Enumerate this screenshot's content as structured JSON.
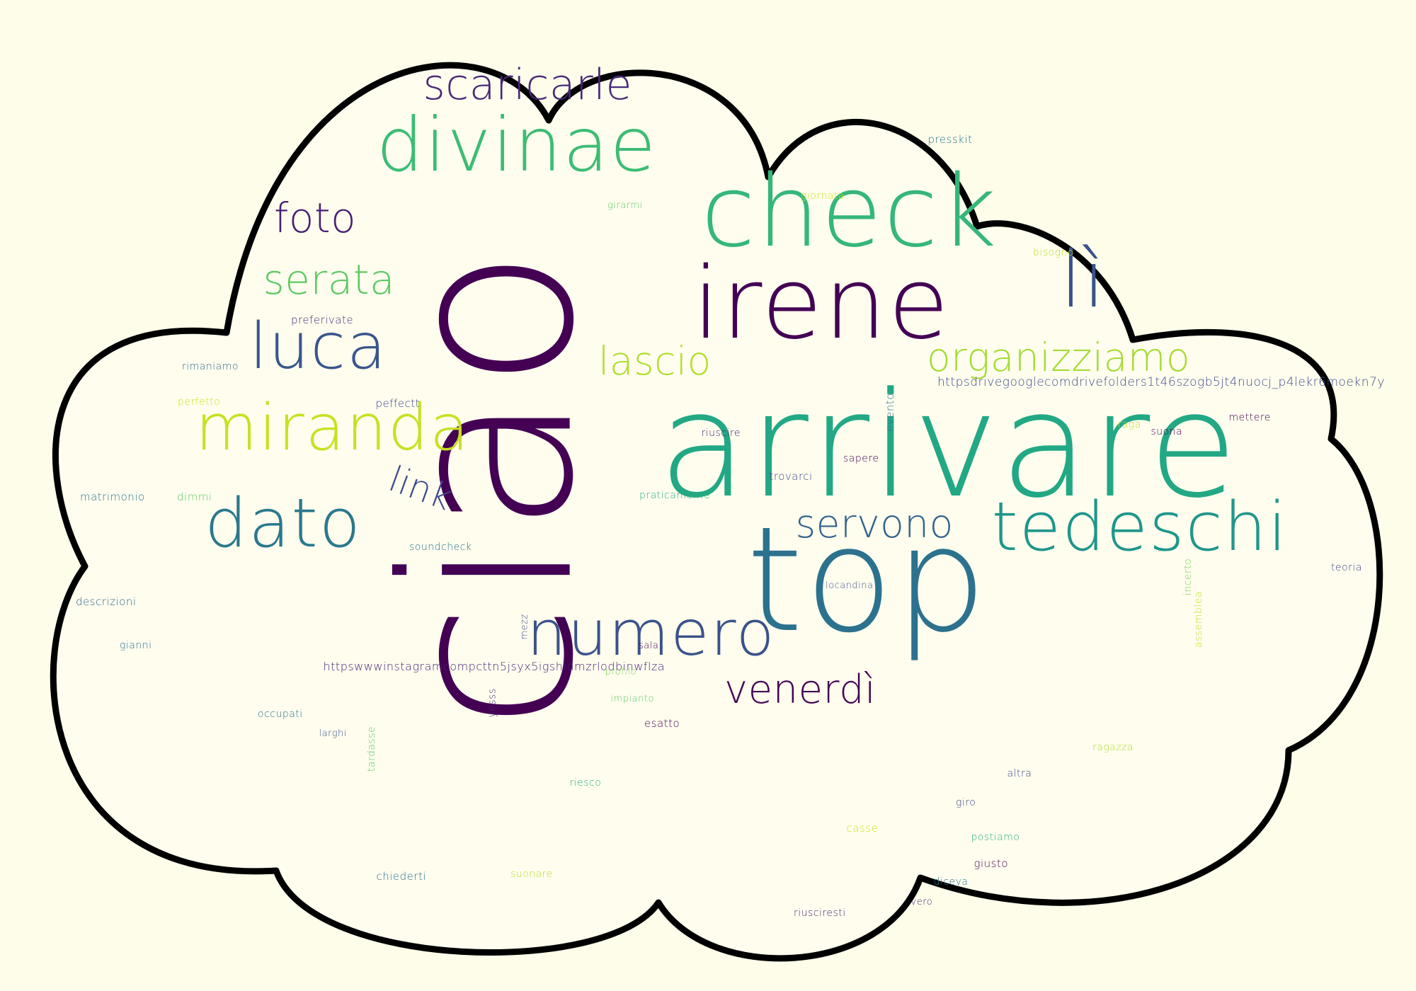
{
  "cloud": {
    "background": "#fdfdea",
    "fill": "#fefdee",
    "outline": "#000000"
  },
  "palette": {
    "dark_purple": "#440154",
    "indigo": "#3b528b",
    "blue": "#31688e",
    "teal": "#21918c",
    "green": "#2ab07f",
    "light_green": "#5ec962",
    "lime": "#a0da39",
    "yellow": "#d2e21b"
  },
  "words": [
    {
      "text": "ciao",
      "color": "#440154",
      "vertical": true
    },
    {
      "text": "arrivare",
      "color": "#22a884"
    },
    {
      "text": "top",
      "color": "#2c728e"
    },
    {
      "text": "check",
      "color": "#35b779"
    },
    {
      "text": "irene",
      "color": "#440154"
    },
    {
      "text": "divinae",
      "color": "#3dbc74"
    },
    {
      "text": "tedeschi",
      "color": "#1f968b"
    },
    {
      "text": "miranda",
      "color": "#c8e020"
    },
    {
      "text": "numero",
      "color": "#3b528b"
    },
    {
      "text": "luca",
      "color": "#39568c"
    },
    {
      "text": "dato",
      "color": "#2a788e"
    },
    {
      "text": "lì",
      "color": "#3b528b"
    },
    {
      "text": "organizziamo",
      "color": "#a5db36"
    },
    {
      "text": "scaricarle",
      "color": "#482878"
    },
    {
      "text": "servono",
      "color": "#33638d"
    },
    {
      "text": "venerdì",
      "color": "#440154"
    },
    {
      "text": "serata",
      "color": "#5ec962"
    },
    {
      "text": "lascio",
      "color": "#b2dd2d"
    },
    {
      "text": "foto",
      "color": "#482173"
    },
    {
      "text": "link",
      "color": "#3e4989"
    },
    {
      "text": "httpsdrivegooglecomdrivefolders1t46szogb5jt4nuocj_p4lekr6moekn7y",
      "color": "#3e4989"
    },
    {
      "text": "httpswwwinstagramcompcttn5jsyx5igshidmzrlodbinwflza",
      "color": "#482475"
    },
    {
      "text": "presskit",
      "color": "#2c728e"
    },
    {
      "text": "giornata",
      "color": "#d2e21b"
    },
    {
      "text": "girarmi",
      "color": "#5ec962"
    },
    {
      "text": "bisogno",
      "color": "#c2df23"
    },
    {
      "text": "preferivate",
      "color": "#482878"
    },
    {
      "text": "rimaniamo",
      "color": "#31688e"
    },
    {
      "text": "perfetto",
      "color": "#d2e21b"
    },
    {
      "text": "peffectt",
      "color": "#3e4989"
    },
    {
      "text": "evento",
      "color": "#2c728e"
    },
    {
      "text": "riuscire",
      "color": "#482475"
    },
    {
      "text": "raga",
      "color": "#c2df23"
    },
    {
      "text": "suona",
      "color": "#440154"
    },
    {
      "text": "mettere",
      "color": "#440154"
    },
    {
      "text": "sapere",
      "color": "#440154"
    },
    {
      "text": "trovarci",
      "color": "#3e4989"
    },
    {
      "text": "matrimonio",
      "color": "#2c728e"
    },
    {
      "text": "dimmi",
      "color": "#5ec962"
    },
    {
      "text": "praticamente",
      "color": "#2ab07f"
    },
    {
      "text": "soundcheck",
      "color": "#2c728e"
    },
    {
      "text": "descrizioni",
      "color": "#31688e"
    },
    {
      "text": "locandina",
      "color": "#3b528b"
    },
    {
      "text": "incerto",
      "color": "#7ad151"
    },
    {
      "text": "assemblea",
      "color": "#c2df23"
    },
    {
      "text": "teoria",
      "color": "#3e4989"
    },
    {
      "text": "mezz",
      "color": "#3e4989"
    },
    {
      "text": "gianni",
      "color": "#2c728e"
    },
    {
      "text": "sala",
      "color": "#440154"
    },
    {
      "text": "profilo",
      "color": "#7ad151"
    },
    {
      "text": "yesss",
      "color": "#482878"
    },
    {
      "text": "impianto",
      "color": "#5ec962"
    },
    {
      "text": "occupati",
      "color": "#2c728e"
    },
    {
      "text": "esatto",
      "color": "#440154"
    },
    {
      "text": "larghi",
      "color": "#3b528b"
    },
    {
      "text": "tardasse",
      "color": "#5ec962"
    },
    {
      "text": "ragazza",
      "color": "#b2dd2d"
    },
    {
      "text": "riesco",
      "color": "#2ab07f"
    },
    {
      "text": "altra",
      "color": "#3e4989"
    },
    {
      "text": "giro",
      "color": "#3e4989"
    },
    {
      "text": "casse",
      "color": "#d2e21b"
    },
    {
      "text": "postiamo",
      "color": "#2ab07f"
    },
    {
      "text": "chiederti",
      "color": "#2c728e"
    },
    {
      "text": "suonare",
      "color": "#c2df23"
    },
    {
      "text": "giusto",
      "color": "#440154"
    },
    {
      "text": "diceva",
      "color": "#2c728e"
    },
    {
      "text": "vero",
      "color": "#482878"
    },
    {
      "text": "riusciresti",
      "color": "#482878"
    }
  ]
}
